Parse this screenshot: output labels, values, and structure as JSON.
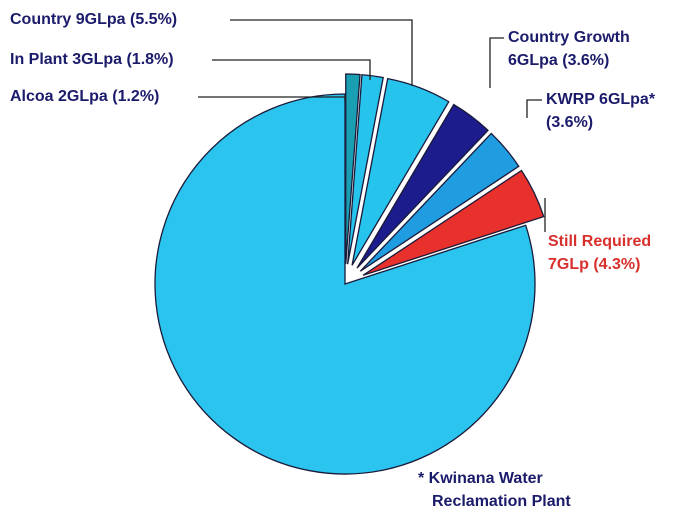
{
  "chart_data": {
    "type": "pie",
    "categories": [
      [
        "Alcoa 2GLpa (1.2%)"
      ],
      [
        "In Plant 3GLpa (1.8%)"
      ],
      [
        "Country 9GLpa (5.5%)"
      ],
      [
        "Country Growth",
        "6GLpa (3.6%)"
      ],
      [
        "KWRP 6GLpa*",
        "(3.6%)"
      ],
      [
        "Still Required",
        "7GLp (4.3%)"
      ],
      null
    ],
    "values": [
      1.2,
      1.8,
      5.5,
      3.6,
      3.6,
      4.3,
      80
    ],
    "colors": [
      "#1a9fb2",
      "#26c3ec",
      "#26c3ec",
      "#1c1c8c",
      "#1f9de0",
      "#e8302c",
      "#2ac4ee"
    ],
    "label_colors": [
      "#1b1b6b",
      "#1b1b6b",
      "#1b1b6b",
      "#1b1b6b",
      "#1b1b6b",
      "#d8302c",
      null
    ],
    "footnote": [
      "* Kwinana Water",
      "Reclamation Plant"
    ]
  }
}
